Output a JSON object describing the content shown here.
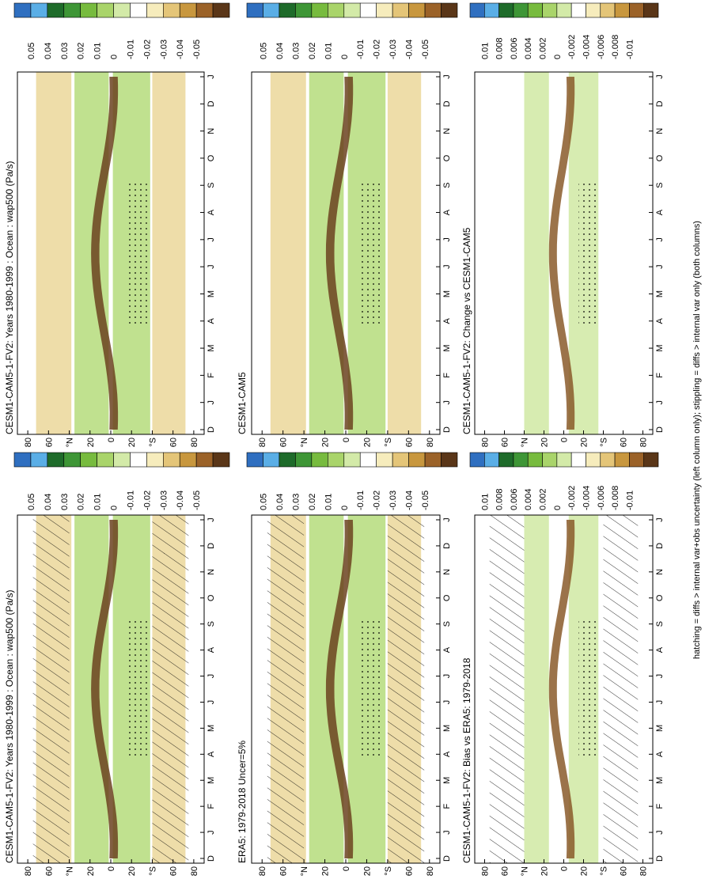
{
  "footer": "hatching = diffs > internal var+obs uncertainty (left column only); stippling = diffs > internal var only (both columns)",
  "months": [
    "D",
    "J",
    "F",
    "M",
    "A",
    "M",
    "J",
    "J",
    "A",
    "S",
    "O",
    "N",
    "D",
    "J"
  ],
  "lat_labels": [
    "80",
    "60",
    "°N",
    "20",
    "0",
    "20",
    "°S",
    "60",
    "80"
  ],
  "panels": [
    {
      "title": "CESM1-CAM5-1-FV2: Years 1980-1999 : Ocean : wap500 (Pa/s)",
      "colorbar": [
        "0.05",
        "0.04",
        "0.03",
        "0.02",
        "0.01",
        "0",
        "-0.01",
        "-0.02",
        "-0.03",
        "-0.04",
        "-0.05"
      ]
    },
    {
      "title": "CESM1-CAM5-1-FV2: Years 1980-1999 : Ocean : wap500 (Pa/s)",
      "colorbar": [
        "0.05",
        "0.04",
        "0.03",
        "0.02",
        "0.01",
        "0",
        "-0.01",
        "-0.02",
        "-0.03",
        "-0.04",
        "-0.05"
      ]
    },
    {
      "title": "ERA5: 1979-2018 Uncer=5%",
      "colorbar": [
        "0.05",
        "0.04",
        "0.03",
        "0.02",
        "0.01",
        "0",
        "-0.01",
        "-0.02",
        "-0.03",
        "-0.04",
        "-0.05"
      ]
    },
    {
      "title": "CESM1-CAM5",
      "colorbar": [
        "0.05",
        "0.04",
        "0.03",
        "0.02",
        "0.01",
        "0",
        "-0.01",
        "-0.02",
        "-0.03",
        "-0.04",
        "-0.05"
      ]
    },
    {
      "title": "CESM1-CAM5-1-FV2: Bias vs ERA5: 1979-2018",
      "colorbar": [
        "0.01",
        "0.008",
        "0.006",
        "0.004",
        "0.002",
        "0",
        "-0.002",
        "-0.004",
        "-0.006",
        "-0.008",
        "-0.01"
      ]
    },
    {
      "title": "CESM1-CAM5-1-FV2: Change vs CESM1-CAM5",
      "colorbar": [
        "0.01",
        "0.008",
        "0.006",
        "0.004",
        "0.002",
        "0",
        "-0.002",
        "-0.004",
        "-0.006",
        "-0.008",
        "-0.01"
      ]
    }
  ]
}
